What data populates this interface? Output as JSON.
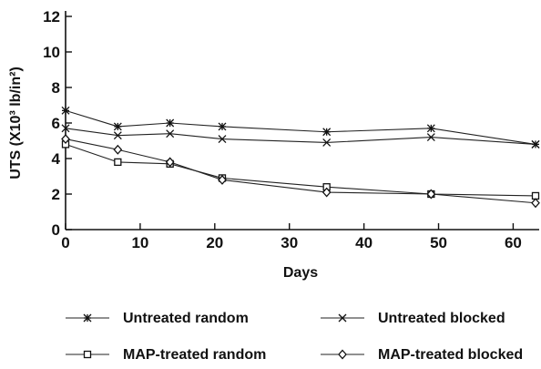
{
  "chart_data": {
    "type": "line",
    "title": "",
    "xlabel": "Days",
    "ylabel": "UTS (X10³ lb/in²)",
    "xlim": [
      0,
      63
    ],
    "ylim": [
      0,
      12
    ],
    "xticks": [
      0,
      10,
      20,
      30,
      40,
      50,
      60
    ],
    "yticks": [
      0,
      2,
      4,
      6,
      8,
      10,
      12
    ],
    "grid": false,
    "legend_position": "bottom",
    "series": [
      {
        "name": "Untreated random",
        "marker": "asterisk",
        "x": [
          0,
          7,
          14,
          21,
          35,
          49,
          63
        ],
        "y": [
          6.7,
          5.8,
          6.0,
          5.8,
          5.5,
          5.7,
          4.8
        ]
      },
      {
        "name": "Untreated blocked",
        "marker": "x",
        "x": [
          0,
          7,
          14,
          21,
          35,
          49,
          63
        ],
        "y": [
          5.7,
          5.3,
          5.4,
          5.1,
          4.9,
          5.2,
          4.8
        ]
      },
      {
        "name": "MAP-treated random",
        "marker": "square",
        "x": [
          0,
          7,
          14,
          21,
          35,
          49,
          63
        ],
        "y": [
          4.8,
          3.8,
          3.7,
          2.9,
          2.4,
          2.0,
          1.9
        ]
      },
      {
        "name": "MAP-treated blocked",
        "marker": "diamond",
        "x": [
          0,
          7,
          14,
          21,
          35,
          49,
          63
        ],
        "y": [
          5.1,
          4.5,
          3.8,
          2.8,
          2.1,
          2.0,
          1.5
        ]
      }
    ]
  }
}
